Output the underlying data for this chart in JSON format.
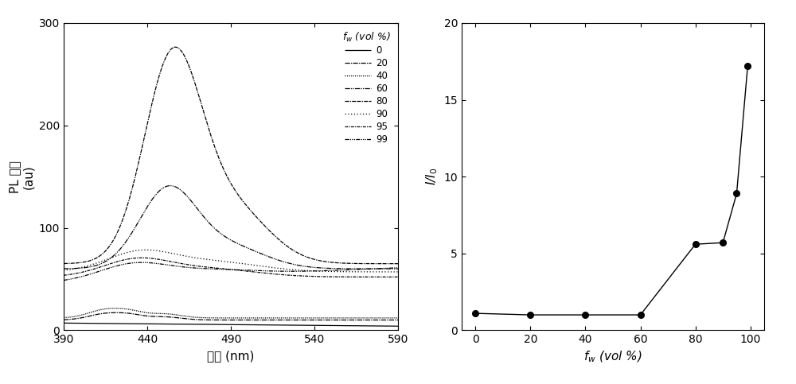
{
  "left_plot": {
    "xlabel": "波长 (nm)",
    "ylabel_line1": "PL 强度",
    "ylabel_line2": "(au)",
    "xlim": [
      390,
      590
    ],
    "ylim": [
      0,
      300
    ],
    "yticks": [
      0,
      100,
      200,
      300
    ],
    "xticks": [
      390,
      440,
      490,
      540,
      590
    ],
    "legend_title": "$f_w$ (vol %)"
  },
  "right_plot": {
    "xlabel": "$f_w$ (vol %)",
    "ylabel": "$I$/$I_0$",
    "xlim": [
      -5,
      105
    ],
    "ylim": [
      0,
      20
    ],
    "yticks": [
      0,
      5,
      10,
      15,
      20
    ],
    "xticks": [
      0,
      20,
      40,
      60,
      80,
      100
    ],
    "xdata": [
      0,
      20,
      40,
      60,
      80,
      90,
      95,
      99
    ],
    "ydata": [
      1.1,
      1.0,
      1.0,
      1.0,
      5.6,
      5.7,
      8.9,
      17.2
    ]
  }
}
